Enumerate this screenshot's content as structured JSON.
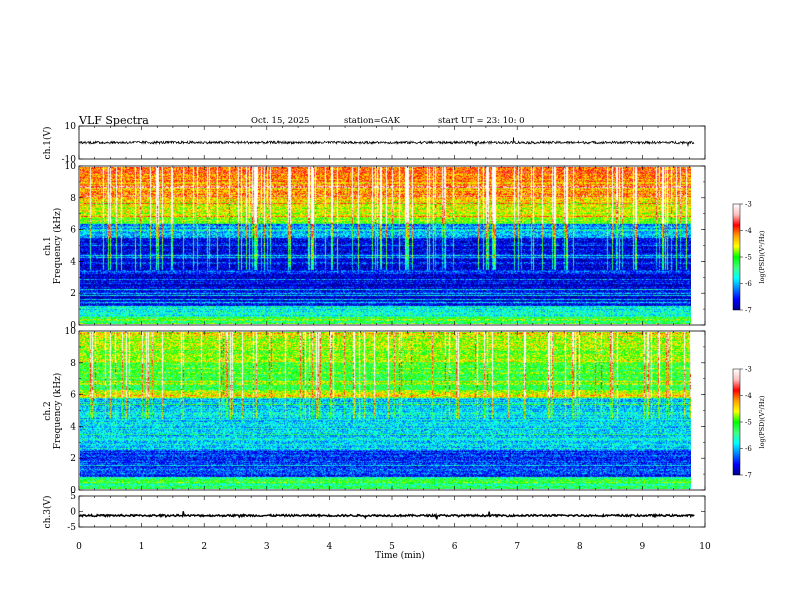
{
  "header": {
    "title": "VLF  Spectra",
    "date": "Oct. 15, 2025",
    "station": "station=GAK",
    "start": "start  UT  =    23: 10: 0"
  },
  "chart_data": {
    "type": "heatmap",
    "title": "VLF  Spectra",
    "xlabel": "Time  (min)",
    "xlim": [
      0,
      10
    ],
    "x_ticks": [
      "0",
      "1",
      "2",
      "3",
      "4",
      "5",
      "6",
      "7",
      "8",
      "9",
      "10"
    ],
    "data_end_minute": 9.83,
    "panels": [
      {
        "id": "ch1-waveform",
        "type": "line",
        "ylabel": "ch.1(V)",
        "ylim": [
          -10,
          10
        ],
        "y_ticks": [
          "10",
          "-10"
        ],
        "baseline_volts": 0
      },
      {
        "id": "ch1-spectrogram",
        "type": "heatmap",
        "ylabel_top": "ch.1",
        "ylabel_bottom": "Frequency  (kHz)",
        "ylim": [
          0,
          10
        ],
        "y_ticks": [
          "0",
          "2",
          "4",
          "6",
          "8",
          "10"
        ],
        "colorbar_label": "log(PSD)(V²/Hz)",
        "colorbar_ticks": [
          "-3",
          "-4",
          "-5",
          "-6",
          "-7"
        ],
        "colorbar_range": [
          -7,
          -3
        ]
      },
      {
        "id": "ch2-spectrogram",
        "type": "heatmap",
        "ylabel_top": "ch.2",
        "ylabel_bottom": "Frequency  (kHz)",
        "ylim": [
          0,
          10
        ],
        "y_ticks": [
          "0",
          "2",
          "4",
          "6",
          "8",
          "10"
        ],
        "colorbar_label": "log(PSD)(V²/Hz)",
        "colorbar_ticks": [
          "-3",
          "-4",
          "-5",
          "-6",
          "-7"
        ],
        "colorbar_range": [
          -7,
          -3
        ]
      },
      {
        "id": "ch3-waveform",
        "type": "line",
        "ylabel": "ch.3(V)",
        "ylim": [
          -5,
          5
        ],
        "y_ticks": [
          "5",
          "0",
          "-5"
        ],
        "baseline_volts": -1.3
      }
    ]
  },
  "colors": {
    "colormap": [
      "#00008b",
      "#0000ff",
      "#0080ff",
      "#00ffff",
      "#40ff80",
      "#00ff00",
      "#ffff00",
      "#ffa000",
      "#ff0000",
      "#ffc0c0",
      "#ffffff"
    ]
  }
}
